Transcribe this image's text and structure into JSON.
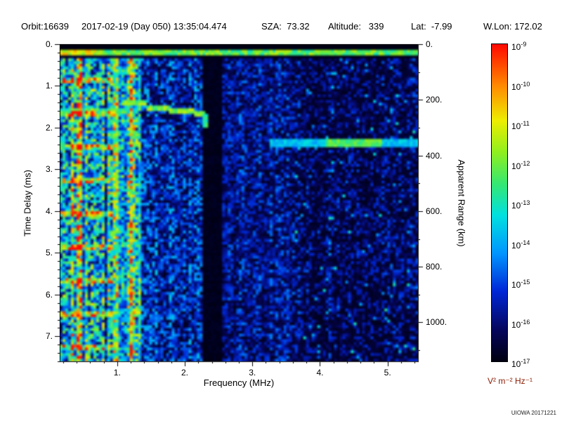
{
  "header": {
    "orbit": "Orbit:16639",
    "datetime": "2017-02-19 (Day 050) 13:35:04.474",
    "sza": "SZA:  73.32",
    "altitude": "Altitude:   339",
    "lat": "Lat:  -7.99",
    "wlon": "W.Lon: 172.02"
  },
  "footer": {
    "credit": "UIOWA 20171221"
  },
  "chart_data": {
    "type": "heatmap",
    "description": "Radar sounder ionogram: received spectral density vs frequency and time delay",
    "xlabel": "Frequency (MHz)",
    "ylabel": "Time Delay (ms)",
    "y2label": "Apparent Range (km)",
    "xlim": [
      0.15,
      5.45
    ],
    "ylim": [
      0,
      7.6
    ],
    "y2lim": [
      0,
      1140
    ],
    "range_km_per_ms": 150,
    "x_ticks": {
      "values": [
        1,
        2,
        3,
        4,
        5
      ],
      "labels": [
        "1.",
        "2.",
        "3.",
        "4.",
        "5."
      ]
    },
    "y_ticks": {
      "values": [
        0,
        1,
        2,
        3,
        4,
        5,
        6,
        7
      ],
      "labels": [
        "0.",
        "1.",
        "2.",
        "3.",
        "4.",
        "5.",
        "6.",
        "7."
      ]
    },
    "y2_ticks": {
      "values": [
        0,
        200,
        400,
        600,
        800,
        1000
      ],
      "labels": [
        "0.",
        "200.",
        "400.",
        "600.",
        "800.",
        "1000."
      ]
    },
    "colorbar": {
      "unit": "V² m⁻² Hz⁻¹",
      "base": "10",
      "exponents": [
        "-9",
        "-10",
        "-11",
        "-12",
        "-13",
        "-14",
        "-15",
        "-16",
        "-17"
      ]
    },
    "colormap_stops": [
      [
        0.0,
        0,
        0,
        18
      ],
      [
        0.1,
        6,
        6,
        95
      ],
      [
        0.22,
        0,
        40,
        215
      ],
      [
        0.34,
        0,
        150,
        255
      ],
      [
        0.46,
        0,
        225,
        225
      ],
      [
        0.56,
        55,
        232,
        115
      ],
      [
        0.66,
        145,
        240,
        30
      ],
      [
        0.76,
        238,
        238,
        0
      ],
      [
        0.86,
        255,
        148,
        0
      ],
      [
        1.0,
        255,
        10,
        0
      ]
    ],
    "features": {
      "top_blank_ms": 0.11,
      "transmit_pulse": {
        "t": 0.18
      },
      "plasma_lines": {
        "fundamental_mhz": 0.11,
        "max_f": 1.35,
        "strong": [
          0.44,
          0.99,
          1.21
        ]
      },
      "cyclotron_echoes": {
        "t_first_ms": 0.85,
        "spacing_ms": 0.8,
        "count": 9,
        "max_f": 0.95
      },
      "ionospheric_trace": [
        {
          "f1": 1.12,
          "f2": 1.42,
          "t": 1.43
        },
        {
          "f1": 1.42,
          "f2": 1.78,
          "t": 1.53
        },
        {
          "f1": 1.78,
          "f2": 2.12,
          "t": 1.6
        },
        {
          "f1": 2.12,
          "f2": 2.32,
          "t": 1.68
        }
      ],
      "trace_cusp": {
        "f": 2.32,
        "t1": 1.68,
        "t2": 1.98
      },
      "surface_echo": {
        "f1": 3.25,
        "f2": 5.45,
        "t": 2.35
      },
      "noise_gap_band": {
        "f1": 2.28,
        "f2": 2.55
      }
    }
  }
}
